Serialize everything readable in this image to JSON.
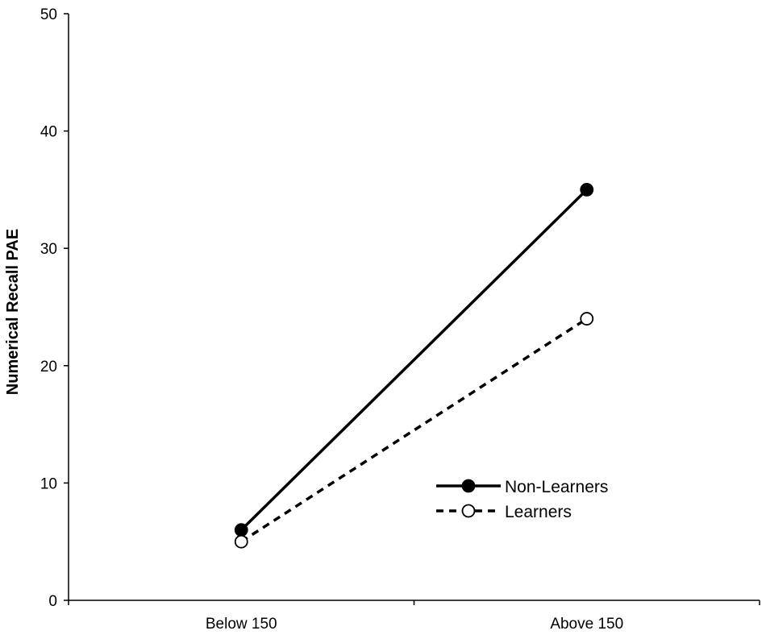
{
  "chart_data": {
    "type": "line",
    "categories": [
      "Below 150",
      "Above 150"
    ],
    "ylabel": "Numerical Recall PAE",
    "xlabel": "",
    "ylim": [
      0,
      50
    ],
    "yticks": [
      0,
      10,
      20,
      30,
      40,
      50
    ],
    "grid": false,
    "legend_position": "inside-lower-right",
    "series": [
      {
        "name": "Non-Learners",
        "values": [
          6,
          35
        ],
        "line_style": "solid",
        "marker": "filled-circle",
        "color": "#000000"
      },
      {
        "name": "Learners",
        "values": [
          5,
          24
        ],
        "line_style": "dashed",
        "marker": "open-circle",
        "color": "#000000"
      }
    ]
  }
}
